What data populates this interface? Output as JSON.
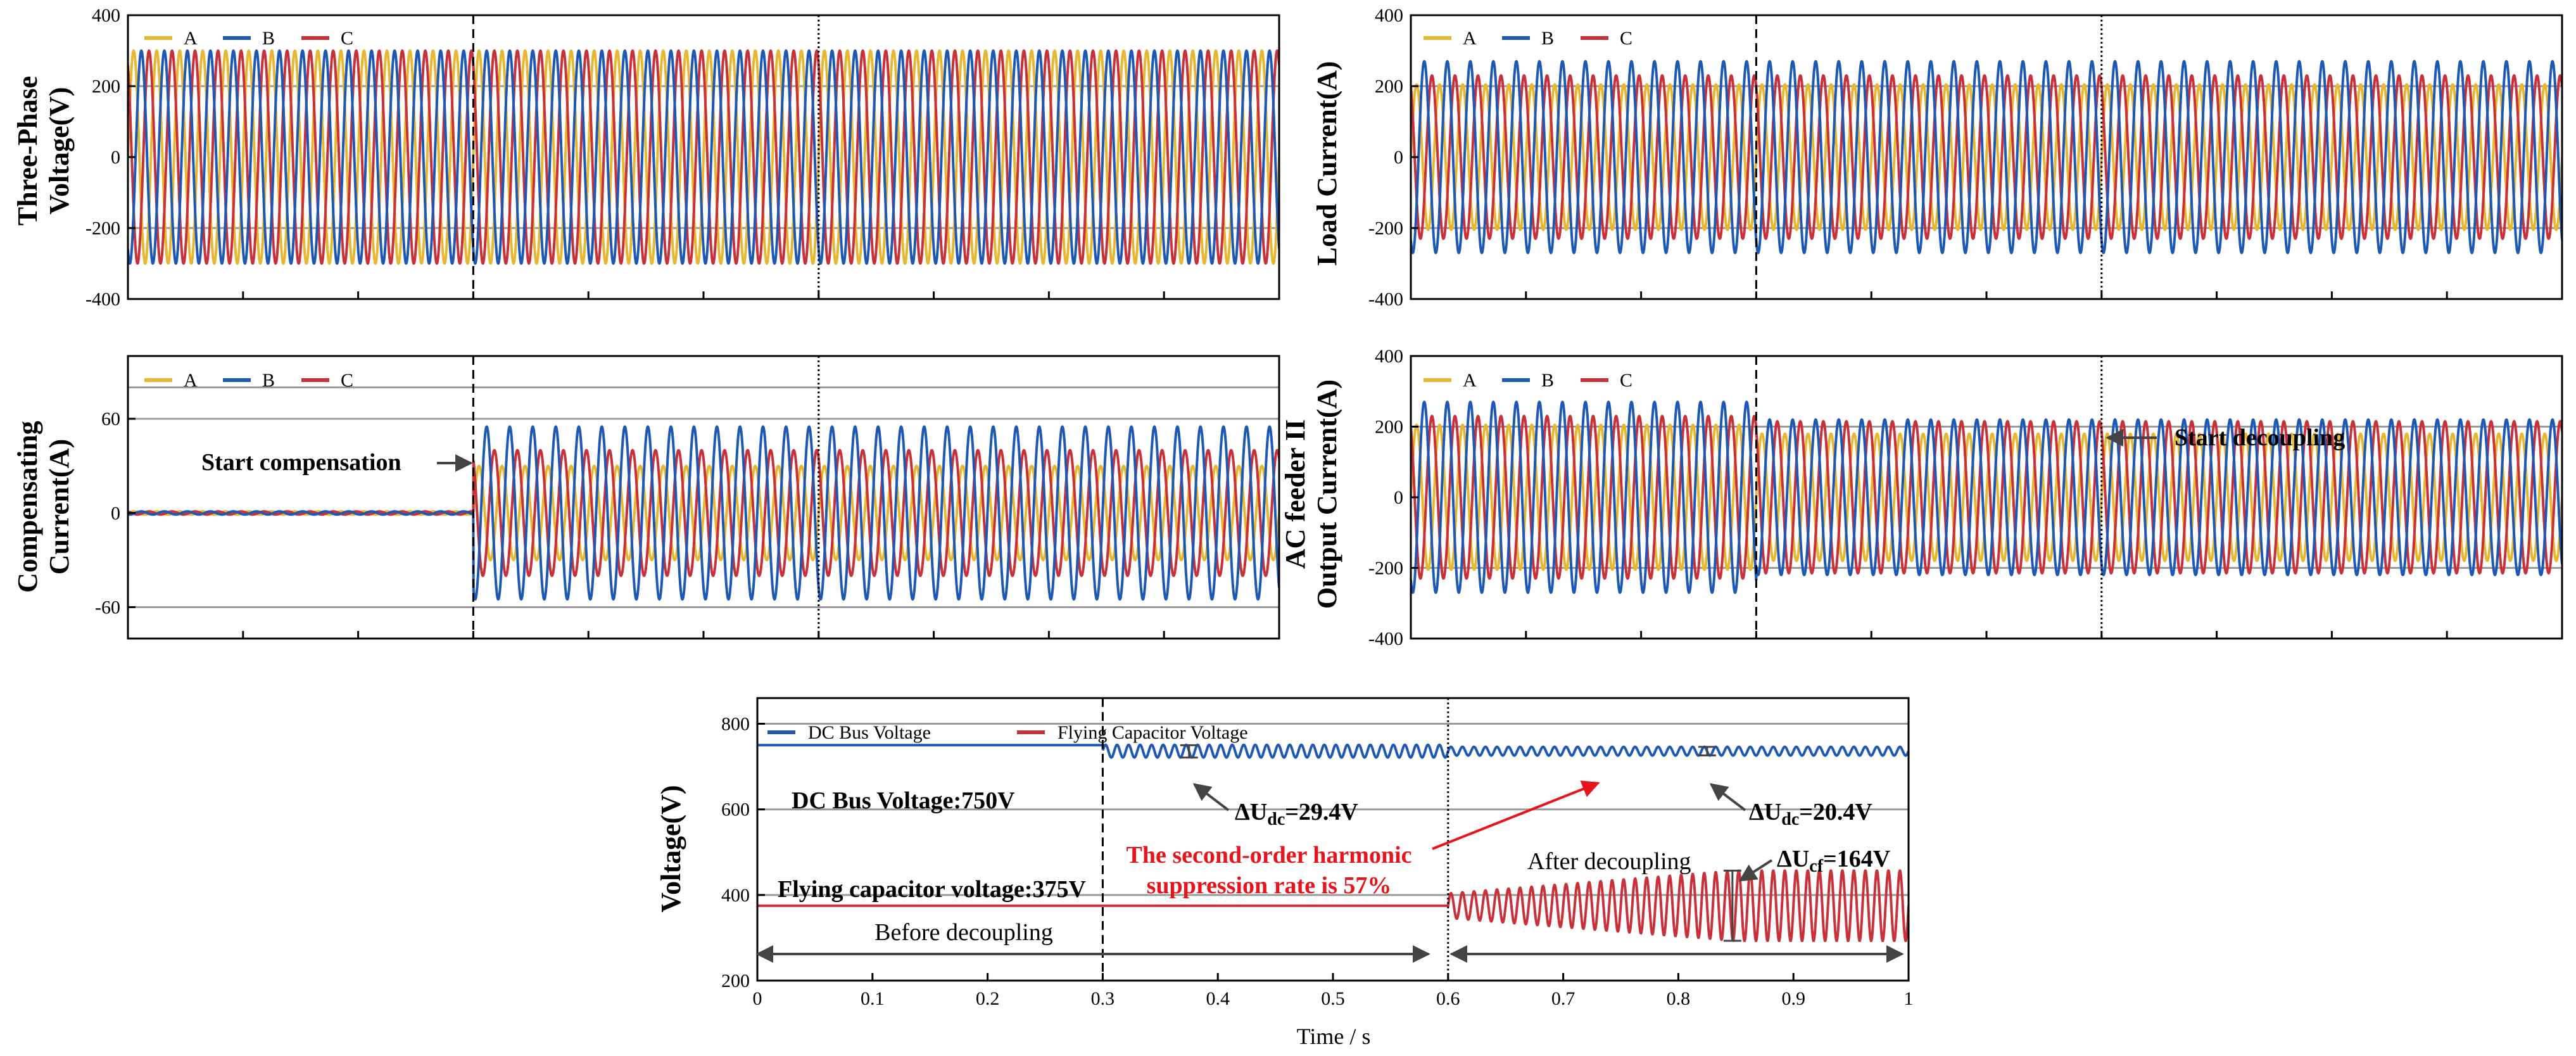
{
  "colors": {
    "A": "#e8b730",
    "B": "#1d58b5",
    "C": "#c8313a",
    "dc_bus": "#1d58b5",
    "flying_cap": "#c8313a",
    "grid": "#9a9a9a",
    "arrow": "#444444",
    "annotation_red": "#e8141b"
  },
  "chart_data": [
    {
      "id": "three-phase-voltage",
      "type": "line",
      "ylabel_lines": [
        "Three-Phase",
        "Voltage(V)"
      ],
      "legend": [
        "A",
        "B",
        "C"
      ],
      "xlim": [
        0,
        1
      ],
      "ylim": [
        -400,
        400
      ],
      "yticks": [
        -400,
        -200,
        0,
        200,
        400
      ],
      "yticklabels": [
        "-400",
        "-200",
        "0",
        "200",
        "400"
      ],
      "grid_y": [
        -200,
        200,
        400
      ],
      "phases": [
        {
          "name": "A",
          "segments": [
            {
              "t0": 0,
              "t1": 1,
              "amp": 300
            }
          ]
        },
        {
          "name": "B",
          "segments": [
            {
              "t0": 0,
              "t1": 1,
              "amp": 300
            }
          ]
        },
        {
          "name": "C",
          "segments": [
            {
              "t0": 0,
              "t1": 1,
              "amp": 300
            }
          ]
        }
      ],
      "markers": [
        {
          "t": 0.3,
          "style": "dashed"
        },
        {
          "t": 0.6,
          "style": "dotted"
        }
      ],
      "annotations": []
    },
    {
      "id": "load-current",
      "type": "line",
      "ylabel_lines": [
        "Load Current(A)"
      ],
      "legend": [
        "A",
        "B",
        "C"
      ],
      "xlim": [
        0,
        1
      ],
      "ylim": [
        -400,
        400
      ],
      "yticks": [
        -400,
        -200,
        0,
        200,
        400
      ],
      "yticklabels": [
        "-400",
        "-200",
        "0",
        "200",
        "400"
      ],
      "grid_y": [
        -200,
        200,
        400
      ],
      "phases": [
        {
          "name": "A",
          "segments": [
            {
              "t0": 0,
              "t1": 1,
              "amp": 205
            }
          ]
        },
        {
          "name": "B",
          "segments": [
            {
              "t0": 0,
              "t1": 1,
              "amp": 270
            }
          ]
        },
        {
          "name": "C",
          "segments": [
            {
              "t0": 0,
              "t1": 1,
              "amp": 230
            }
          ]
        }
      ],
      "markers": [
        {
          "t": 0.3,
          "style": "dashed"
        },
        {
          "t": 0.6,
          "style": "dotted"
        }
      ],
      "annotations": []
    },
    {
      "id": "compensating-current",
      "type": "line",
      "ylabel_lines": [
        "Compensating",
        "Current(A)"
      ],
      "legend": [
        "A",
        "B",
        "C"
      ],
      "xlim": [
        0,
        1
      ],
      "ylim": [
        -80,
        100
      ],
      "yticks": [
        -60,
        0,
        60
      ],
      "yticklabels": [
        "-60",
        "0",
        "60"
      ],
      "grid_y": [
        -60,
        60,
        80
      ],
      "phases": [
        {
          "name": "A",
          "segments": [
            {
              "t0": 0,
              "t1": 0.3,
              "amp": 1
            },
            {
              "t0": 0.3,
              "t1": 1,
              "amp": 30
            }
          ]
        },
        {
          "name": "B",
          "segments": [
            {
              "t0": 0,
              "t1": 0.3,
              "amp": 1
            },
            {
              "t0": 0.3,
              "t1": 1,
              "amp": 55
            }
          ]
        },
        {
          "name": "C",
          "segments": [
            {
              "t0": 0,
              "t1": 0.3,
              "amp": 1
            },
            {
              "t0": 0.3,
              "t1": 1,
              "amp": 40
            }
          ]
        }
      ],
      "markers": [
        {
          "t": 0.3,
          "style": "dashed"
        },
        {
          "t": 0.6,
          "style": "dotted"
        }
      ],
      "annotations": [
        {
          "text": "Start compensation",
          "arrow": "right",
          "t": 0.3,
          "y": 45
        }
      ]
    },
    {
      "id": "ac-feeder-output-current",
      "type": "line",
      "ylabel_lines": [
        "AC feeder II",
        "Output Current(A)"
      ],
      "legend": [
        "A",
        "B",
        "C"
      ],
      "xlim": [
        0,
        1
      ],
      "ylim": [
        -400,
        400
      ],
      "yticks": [
        -400,
        -200,
        0,
        200,
        400
      ],
      "yticklabels": [
        "-400",
        "-200",
        "0",
        "200",
        "400"
      ],
      "grid_y": [
        -200,
        200,
        400
      ],
      "phases": [
        {
          "name": "A",
          "segments": [
            {
              "t0": 0,
              "t1": 0.3,
              "amp": 205
            },
            {
              "t0": 0.3,
              "t1": 1,
              "amp": 180
            }
          ]
        },
        {
          "name": "B",
          "segments": [
            {
              "t0": 0,
              "t1": 0.3,
              "amp": 270
            },
            {
              "t0": 0.3,
              "t1": 1,
              "amp": 220
            }
          ]
        },
        {
          "name": "C",
          "segments": [
            {
              "t0": 0,
              "t1": 0.3,
              "amp": 230
            },
            {
              "t0": 0.3,
              "t1": 1,
              "amp": 215
            }
          ]
        }
      ],
      "markers": [
        {
          "t": 0.3,
          "style": "dashed"
        },
        {
          "t": 0.6,
          "style": "dotted"
        }
      ],
      "annotations": [
        {
          "text": "Start decoupling",
          "arrow": "left",
          "t": 0.6,
          "y": 310
        }
      ]
    },
    {
      "id": "dc-bus-and-flying-capacitor-voltage",
      "type": "line",
      "ylabel_lines": [
        "Voltage(V)"
      ],
      "xlabel": "Time / s",
      "legend": [
        "DC Bus Voltage",
        "Flying Capacitor Voltage"
      ],
      "xlim": [
        0,
        1
      ],
      "ylim": [
        200,
        860
      ],
      "yticks": [
        200,
        400,
        600,
        800
      ],
      "yticklabels": [
        "200",
        "400",
        "600",
        "800"
      ],
      "grid_y": [
        400,
        600,
        800
      ],
      "xticks": [
        0,
        0.1,
        0.2,
        0.3,
        0.4,
        0.5,
        0.6,
        0.7,
        0.8,
        0.9,
        1
      ],
      "xticklabels": [
        "0",
        "0.1",
        "0.2",
        "0.3",
        "0.4",
        "0.5",
        "0.6",
        "0.7",
        "0.8",
        "0.9",
        "1"
      ],
      "series": [
        {
          "name": "DC Bus Voltage",
          "segments": [
            {
              "t0": 0,
              "t1": 0.3,
              "mean": 750,
              "ripple": 0
            },
            {
              "t0": 0.3,
              "t1": 0.6,
              "mean": 736,
              "ripple": 29.4
            },
            {
              "t0": 0.6,
              "t1": 1,
              "mean": 736,
              "ripple": 20.4
            }
          ]
        },
        {
          "name": "Flying Capacitor Voltage",
          "segments": [
            {
              "t0": 0,
              "t1": 0.3,
              "mean": 375,
              "ripple": 0
            },
            {
              "t0": 0.3,
              "t1": 0.6,
              "mean": 375,
              "ripple": 0
            },
            {
              "t0": 0.6,
              "t1": 1,
              "mean": 375,
              "ripple": 164
            }
          ]
        }
      ],
      "markers": [
        {
          "t": 0.3,
          "style": "dashed"
        },
        {
          "t": 0.6,
          "style": "dotted"
        }
      ],
      "annotations": {
        "dc_bus_label": "DC Bus Voltage:750V",
        "delta_udc_1": {
          "prefix": "ΔU",
          "sub": "dc",
          "suffix": "=29.4V"
        },
        "delta_udc_2": {
          "prefix": "ΔU",
          "sub": "dc",
          "suffix": "=20.4V"
        },
        "flying_cap_label": "Flying capacitor voltage:375V",
        "harmonic_line1": "The second-order harmonic",
        "harmonic_line2": "suppression rate is 57%",
        "after_decoupling": "After decoupling",
        "delta_ucf": {
          "prefix": "ΔU",
          "sub": "cf",
          "suffix": "=164V"
        },
        "before_decoupling": "Before decoupling"
      }
    }
  ]
}
